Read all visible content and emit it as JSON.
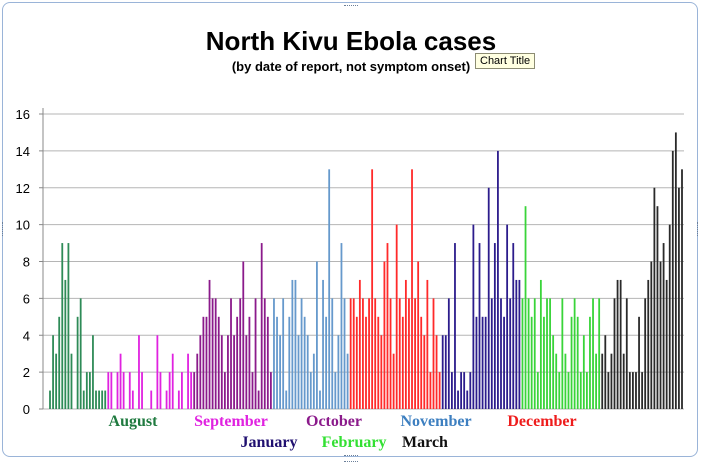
{
  "chart_data": {
    "type": "bar",
    "title": "North Kivu Ebola cases",
    "subtitle": "(by date of report, not symptom onset)",
    "ylim": [
      0,
      16
    ],
    "yticks": [
      0,
      2,
      4,
      6,
      8,
      10,
      12,
      14,
      16
    ],
    "grid": true,
    "series": [
      {
        "month": "August",
        "color": "#2e8b57",
        "values": [
          1,
          4,
          3,
          5,
          9,
          7,
          9,
          3,
          0,
          5,
          6,
          1,
          2,
          2,
          4,
          1,
          1,
          1,
          1
        ]
      },
      {
        "month": "September",
        "color": "#e022e0",
        "values": [
          2,
          2,
          0,
          2,
          3,
          2,
          0,
          2,
          1,
          0,
          4,
          2,
          0,
          0,
          1,
          0,
          4,
          2,
          0,
          1,
          2,
          3,
          0,
          1,
          2,
          0,
          3,
          2
        ]
      },
      {
        "month": "October",
        "color": "#8b1a8b",
        "values": [
          2,
          3,
          4,
          5,
          5,
          7,
          6,
          6,
          5,
          4,
          2,
          4,
          6,
          4,
          5,
          6,
          8,
          4,
          5,
          2,
          6,
          1,
          9,
          6,
          5,
          2
        ]
      },
      {
        "month": "November",
        "color": "#6699cc",
        "values": [
          6,
          5,
          4,
          6,
          1,
          5,
          7,
          7,
          4,
          6,
          5,
          4,
          2,
          3,
          8,
          1,
          7,
          5,
          13,
          6,
          2,
          4,
          9,
          6,
          3
        ]
      },
      {
        "month": "December",
        "color": "#ff2a2a",
        "values": [
          6,
          6,
          5,
          7,
          6,
          5,
          6,
          13,
          6,
          5,
          4,
          8,
          9,
          6,
          3,
          10,
          6,
          5,
          7,
          6,
          13,
          6,
          8,
          5,
          4,
          7,
          2,
          6,
          4,
          2
        ]
      },
      {
        "month": "January",
        "color": "#2c1c8c",
        "values": [
          4,
          4,
          6,
          2,
          9,
          1,
          2,
          2,
          1,
          2,
          10,
          5,
          9,
          5,
          5,
          12,
          6,
          9,
          14,
          6,
          5,
          10,
          6,
          9,
          7,
          7
        ]
      },
      {
        "month": "February",
        "color": "#39d439",
        "values": [
          6,
          11,
          6,
          5,
          6,
          2,
          7,
          5,
          6,
          6,
          4,
          3,
          2,
          6,
          3,
          2,
          5,
          6,
          5,
          2,
          4,
          2,
          5,
          6,
          3,
          6
        ]
      },
      {
        "month": "March",
        "color": "#2a2a2a",
        "values": [
          3,
          4,
          2,
          3,
          6,
          7,
          7,
          3,
          6,
          2,
          2,
          2,
          5,
          2,
          6,
          7,
          8,
          12,
          11,
          8,
          9,
          7,
          10,
          14,
          15,
          12,
          13
        ]
      }
    ],
    "legend": [
      {
        "label": "August",
        "color": "#1f7a3f"
      },
      {
        "label": "September",
        "color": "#e022e0"
      },
      {
        "label": "October",
        "color": "#8b1a8b"
      },
      {
        "label": "November",
        "color": "#3d7fc0"
      },
      {
        "label": "December",
        "color": "#ee1c1c"
      },
      {
        "label": "January",
        "color": "#201070"
      },
      {
        "label": "February",
        "color": "#33e033"
      },
      {
        "label": "March",
        "color": "#111111"
      }
    ]
  },
  "ui": {
    "tooltip": "Chart Title"
  }
}
